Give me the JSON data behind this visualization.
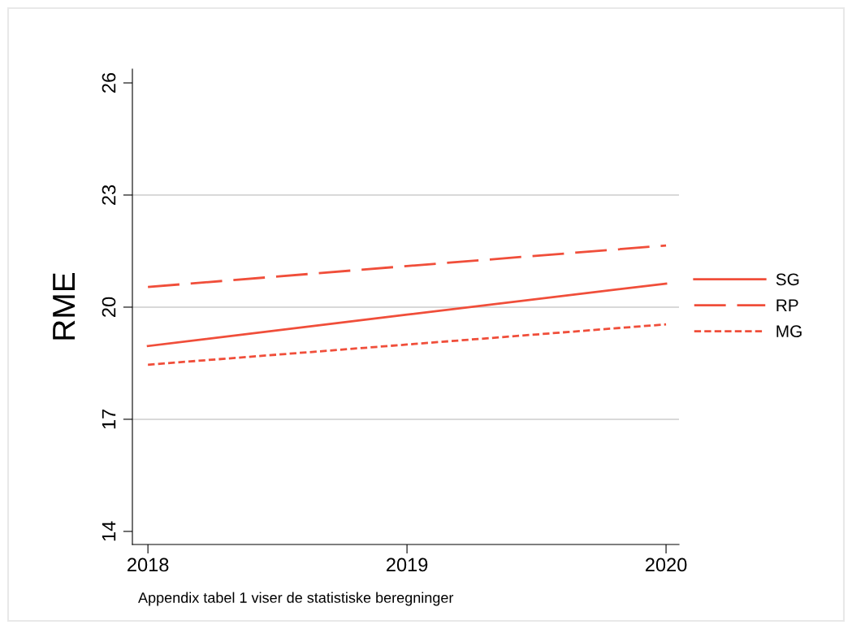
{
  "chart_data": {
    "type": "line",
    "ylabel": "RME",
    "x": [
      2018,
      2019,
      2020
    ],
    "series": [
      {
        "name": "SG",
        "color": "#f04e3a",
        "values": [
          18.96,
          19.8,
          20.63
        ],
        "line_style": "solid"
      },
      {
        "name": "RP",
        "color": "#f04e3a",
        "values": [
          20.54,
          21.1,
          21.65
        ],
        "line_style": "dashed"
      },
      {
        "name": "MG",
        "color": "#f04e3a",
        "values": [
          18.46,
          19.0,
          19.54
        ],
        "line_style": "dotted"
      }
    ],
    "xlim": [
      2017.94,
      2020.05
    ],
    "xticks": [
      2018,
      2019,
      2020
    ],
    "ylim": [
      13.65,
      26.37
    ],
    "yticks": [
      14,
      17,
      20,
      23,
      26
    ],
    "grid": "y",
    "legend": "right",
    "marker": "none",
    "annotations": [
      "Appendix tabel 1 viser de statistiske beregninger"
    ]
  }
}
